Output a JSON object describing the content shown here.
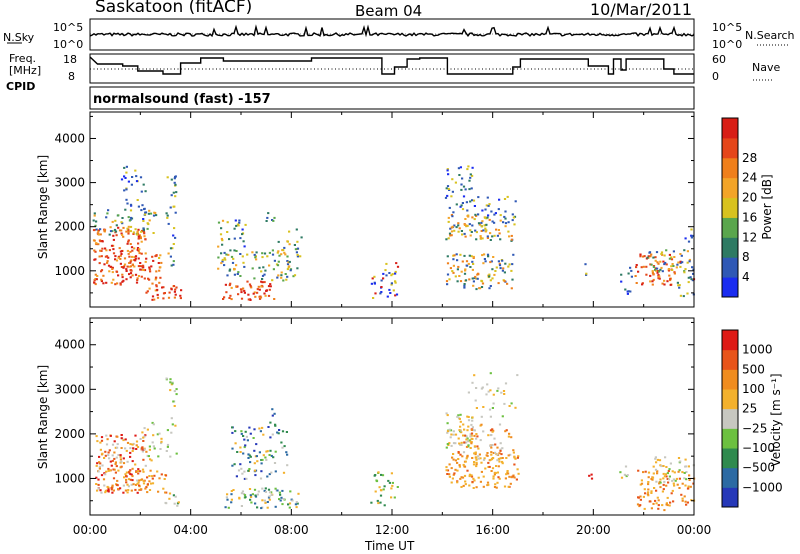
{
  "header": {
    "station": "Saskatoon (fitACF)",
    "beam": "Beam 04",
    "date": "10/Mar/2011"
  },
  "side_labels": {
    "nsky": "N.Sky",
    "nsearch": "N.Search",
    "freq_line1": "Freq.",
    "freq_line2": "[MHz]",
    "nave": "Nave",
    "cpid": "CPID",
    "cpid_value": "normalsound (fast) -157"
  },
  "noise_axis": {
    "left_ticks": [
      "10^5",
      "10^0"
    ],
    "right_ticks": [
      "10^5",
      "10^0"
    ]
  },
  "freq_axis": {
    "left_ticks": [
      "18",
      "8"
    ],
    "right_ticks": [
      "60",
      "0"
    ]
  },
  "chart_data": [
    {
      "type": "heatmap",
      "title": "",
      "xlabel": "Time UT",
      "ylabel": "Slant Range [km]",
      "xlim": [
        0,
        24
      ],
      "ylim": [
        180,
        4600
      ],
      "x_ticks": [
        "00:00",
        "04:00",
        "08:00",
        "12:00",
        "16:00",
        "20:00",
        "00:00"
      ],
      "y_ticks": [
        "1000",
        "2000",
        "3000",
        "4000"
      ],
      "colorbar": {
        "label": "Power [dB]",
        "ticks": [
          "4",
          "8",
          "12",
          "16",
          "20",
          "24",
          "28"
        ],
        "colors": [
          "#1a2cf0",
          "#2f58b5",
          "#2e7a63",
          "#5aa64d",
          "#d8c21f",
          "#f3a428",
          "#ef7f1b",
          "#e5461a",
          "#d81e16"
        ]
      }
    },
    {
      "type": "heatmap",
      "title": "",
      "xlabel": "Time UT",
      "ylabel": "Slant Range [km]",
      "xlim": [
        0,
        24
      ],
      "ylim": [
        180,
        4600
      ],
      "x_ticks": [
        "00:00",
        "04:00",
        "08:00",
        "12:00",
        "16:00",
        "20:00",
        "00:00"
      ],
      "y_ticks": [
        "1000",
        "2000",
        "3000",
        "4000"
      ],
      "colorbar": {
        "label": "Velocity [m s⁻¹]",
        "ticks": [
          "1000",
          "500",
          "100",
          "25",
          "−25",
          "−100",
          "−500",
          "−1000"
        ],
        "colors": [
          "#2638b8",
          "#2c6aa3",
          "#2f8a4e",
          "#6cc040",
          "#c7c7c0",
          "#f3b12d",
          "#ef8c1f",
          "#e8541a",
          "#de1a16"
        ]
      }
    }
  ]
}
